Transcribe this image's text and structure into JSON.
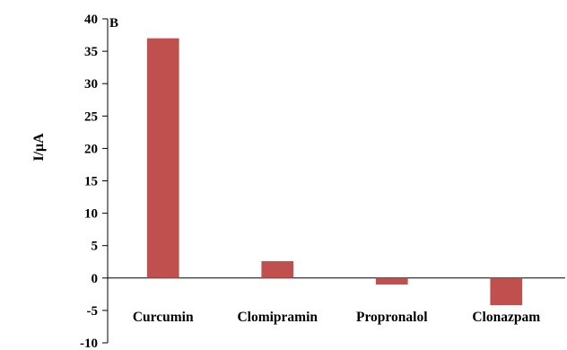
{
  "chart_data": {
    "type": "bar",
    "panel_label": "B",
    "ylabel": "I/μA",
    "xlabel": "",
    "categories": [
      "Curcumin",
      "Clomipramin",
      "Propronalol",
      "Clonazpam"
    ],
    "values": [
      37.0,
      2.6,
      -1.0,
      -4.2
    ],
    "ylim": [
      -10,
      40
    ],
    "yticks": [
      "-10",
      "-5",
      "0",
      "5",
      "10",
      "15",
      "20",
      "25",
      "30",
      "35",
      "40"
    ],
    "bar_color": "#c0504d",
    "grid": false,
    "legend": "none"
  }
}
